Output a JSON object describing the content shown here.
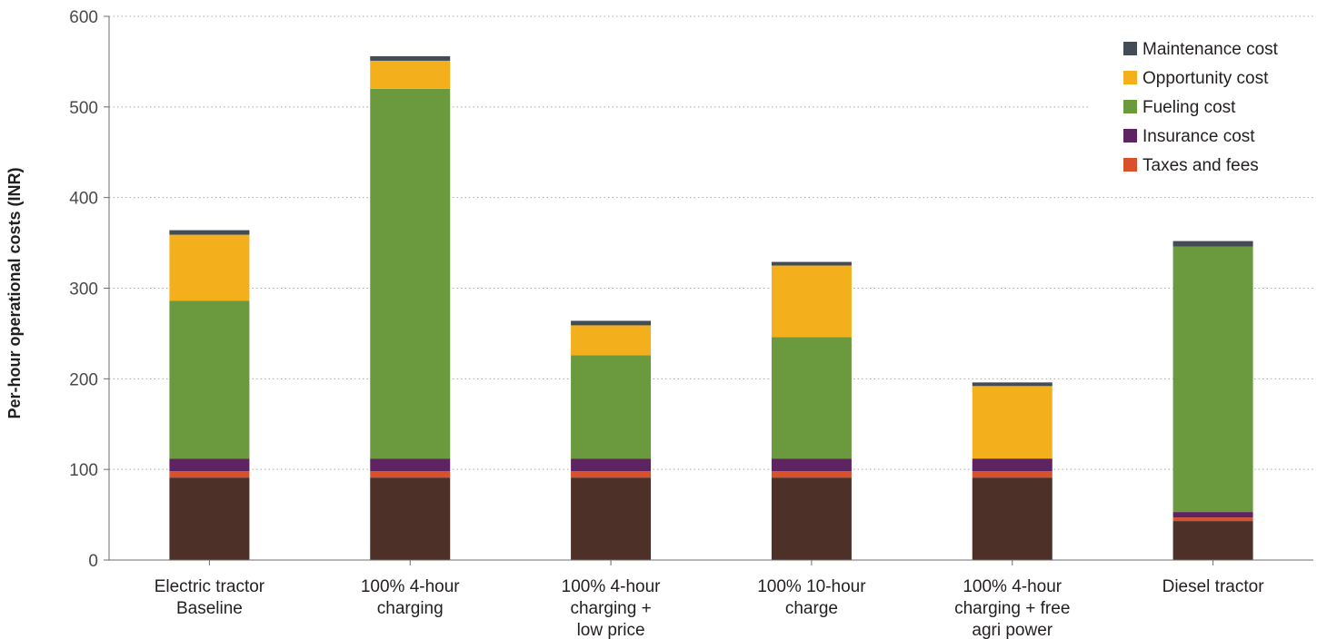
{
  "chart_data": {
    "type": "bar",
    "stacked": true,
    "title": "",
    "xlabel": "",
    "ylabel": "Per-hour operational costs (INR)",
    "ylim": [
      0,
      600
    ],
    "yticks": [
      0,
      100,
      200,
      300,
      400,
      500,
      600
    ],
    "grid": "horizontal dotted",
    "legend_position": "top-right",
    "categories": [
      [
        "Electric tractor",
        "Baseline"
      ],
      [
        "100% 4-hour",
        "charging"
      ],
      [
        "100% 4-hour",
        "charging +",
        "low price"
      ],
      [
        "100% 10-hour",
        "charge"
      ],
      [
        "100% 4-hour",
        "charging + free",
        "agri power"
      ],
      [
        "Diesel tractor"
      ]
    ],
    "series": [
      {
        "name": "",
        "color": "#4d3027",
        "values": [
          91,
          91,
          91,
          91,
          91,
          43
        ]
      },
      {
        "name": "Taxes and fees",
        "color": "#d9512c",
        "values": [
          7,
          7,
          7,
          7,
          7,
          4
        ]
      },
      {
        "name": "Insurance cost",
        "color": "#5e2461",
        "values": [
          14,
          14,
          14,
          14,
          14,
          6
        ]
      },
      {
        "name": "Fueling cost",
        "color": "#6a993e",
        "values": [
          174,
          408,
          114,
          134,
          0,
          293
        ]
      },
      {
        "name": "Opportunity cost",
        "color": "#f3b01c",
        "values": [
          73,
          31,
          33,
          79,
          80,
          0
        ]
      },
      {
        "name": "Maintenance cost",
        "color": "#434b55",
        "values": [
          5,
          5,
          5,
          4,
          4,
          6
        ]
      }
    ],
    "legend": [
      "Maintenance cost",
      "Opportunity cost",
      "Fueling cost",
      "Insurance cost",
      "Taxes and fees"
    ]
  }
}
